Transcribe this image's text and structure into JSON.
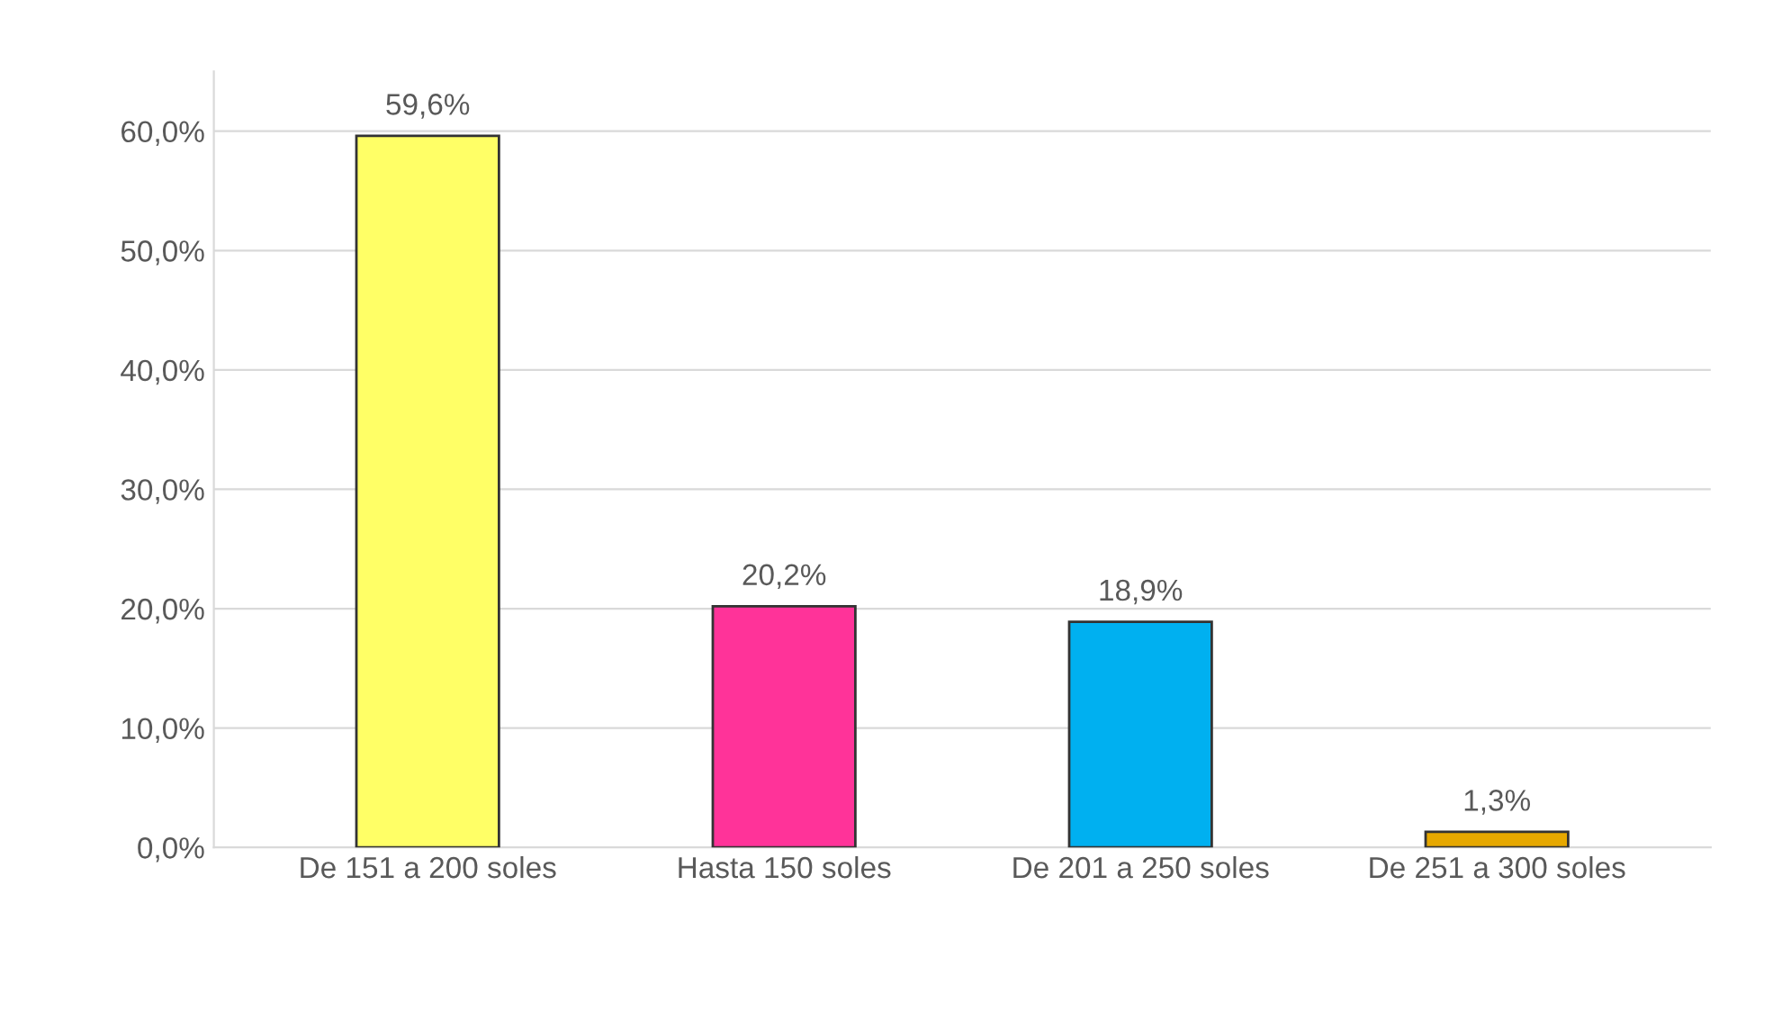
{
  "chart_data": {
    "type": "bar",
    "categories": [
      "De 151 a 200 soles",
      "Hasta 150 soles",
      "De 201 a 250 soles",
      "De 251 a 300 soles"
    ],
    "values": [
      59.6,
      20.2,
      18.9,
      1.3
    ],
    "value_labels": [
      "59,6%",
      "20,2%",
      "18,9%",
      "1,3%"
    ],
    "colors": [
      "#ffff66",
      "#ff3399",
      "#00b0f0",
      "#e6a800"
    ],
    "ylim": [
      0,
      65
    ],
    "yticks": [
      {
        "value": 0,
        "label": "0,0%"
      },
      {
        "value": 10,
        "label": "10,0%"
      },
      {
        "value": 20,
        "label": "20,0%"
      },
      {
        "value": 30,
        "label": "30,0%"
      },
      {
        "value": 40,
        "label": "40,0%"
      },
      {
        "value": 50,
        "label": "50,0%"
      },
      {
        "value": 60,
        "label": "60,0%"
      }
    ],
    "grid": "y"
  }
}
